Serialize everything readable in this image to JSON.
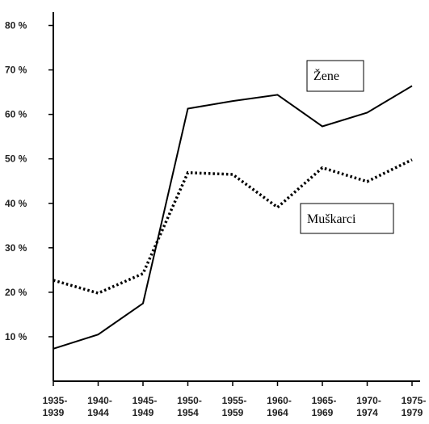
{
  "chart_data": {
    "type": "line",
    "categories": [
      "1935-1939",
      "1940-1944",
      "1945-1949",
      "1950-1954",
      "1955-1959",
      "1960-1964",
      "1965-1969",
      "1970-1974",
      "1975-1979"
    ],
    "series": [
      {
        "name": "Žene",
        "color": "#000000",
        "dash": "solid",
        "values": [
          7.3,
          10.5,
          17.5,
          61.3,
          63,
          64.4,
          57.3,
          60.4,
          66.4
        ]
      },
      {
        "name": "Muškarci",
        "color": "#000000",
        "dash": "dotted",
        "values": [
          22.7,
          19.8,
          24.2,
          46.9,
          46.5,
          39.1,
          48,
          44.9,
          49.8
        ]
      }
    ],
    "ylim": [
      0,
      83
    ],
    "yticks": [
      {
        "value": 10,
        "label": "10 %"
      },
      {
        "value": 20,
        "label": "20 %"
      },
      {
        "value": 30,
        "label": "30 %"
      },
      {
        "value": 40,
        "label": "40 %"
      },
      {
        "value": 50,
        "label": "50 %"
      },
      {
        "value": 60,
        "label": "60 %"
      },
      {
        "value": 70,
        "label": "70 %"
      },
      {
        "value": 80,
        "label": "80 %"
      }
    ]
  }
}
